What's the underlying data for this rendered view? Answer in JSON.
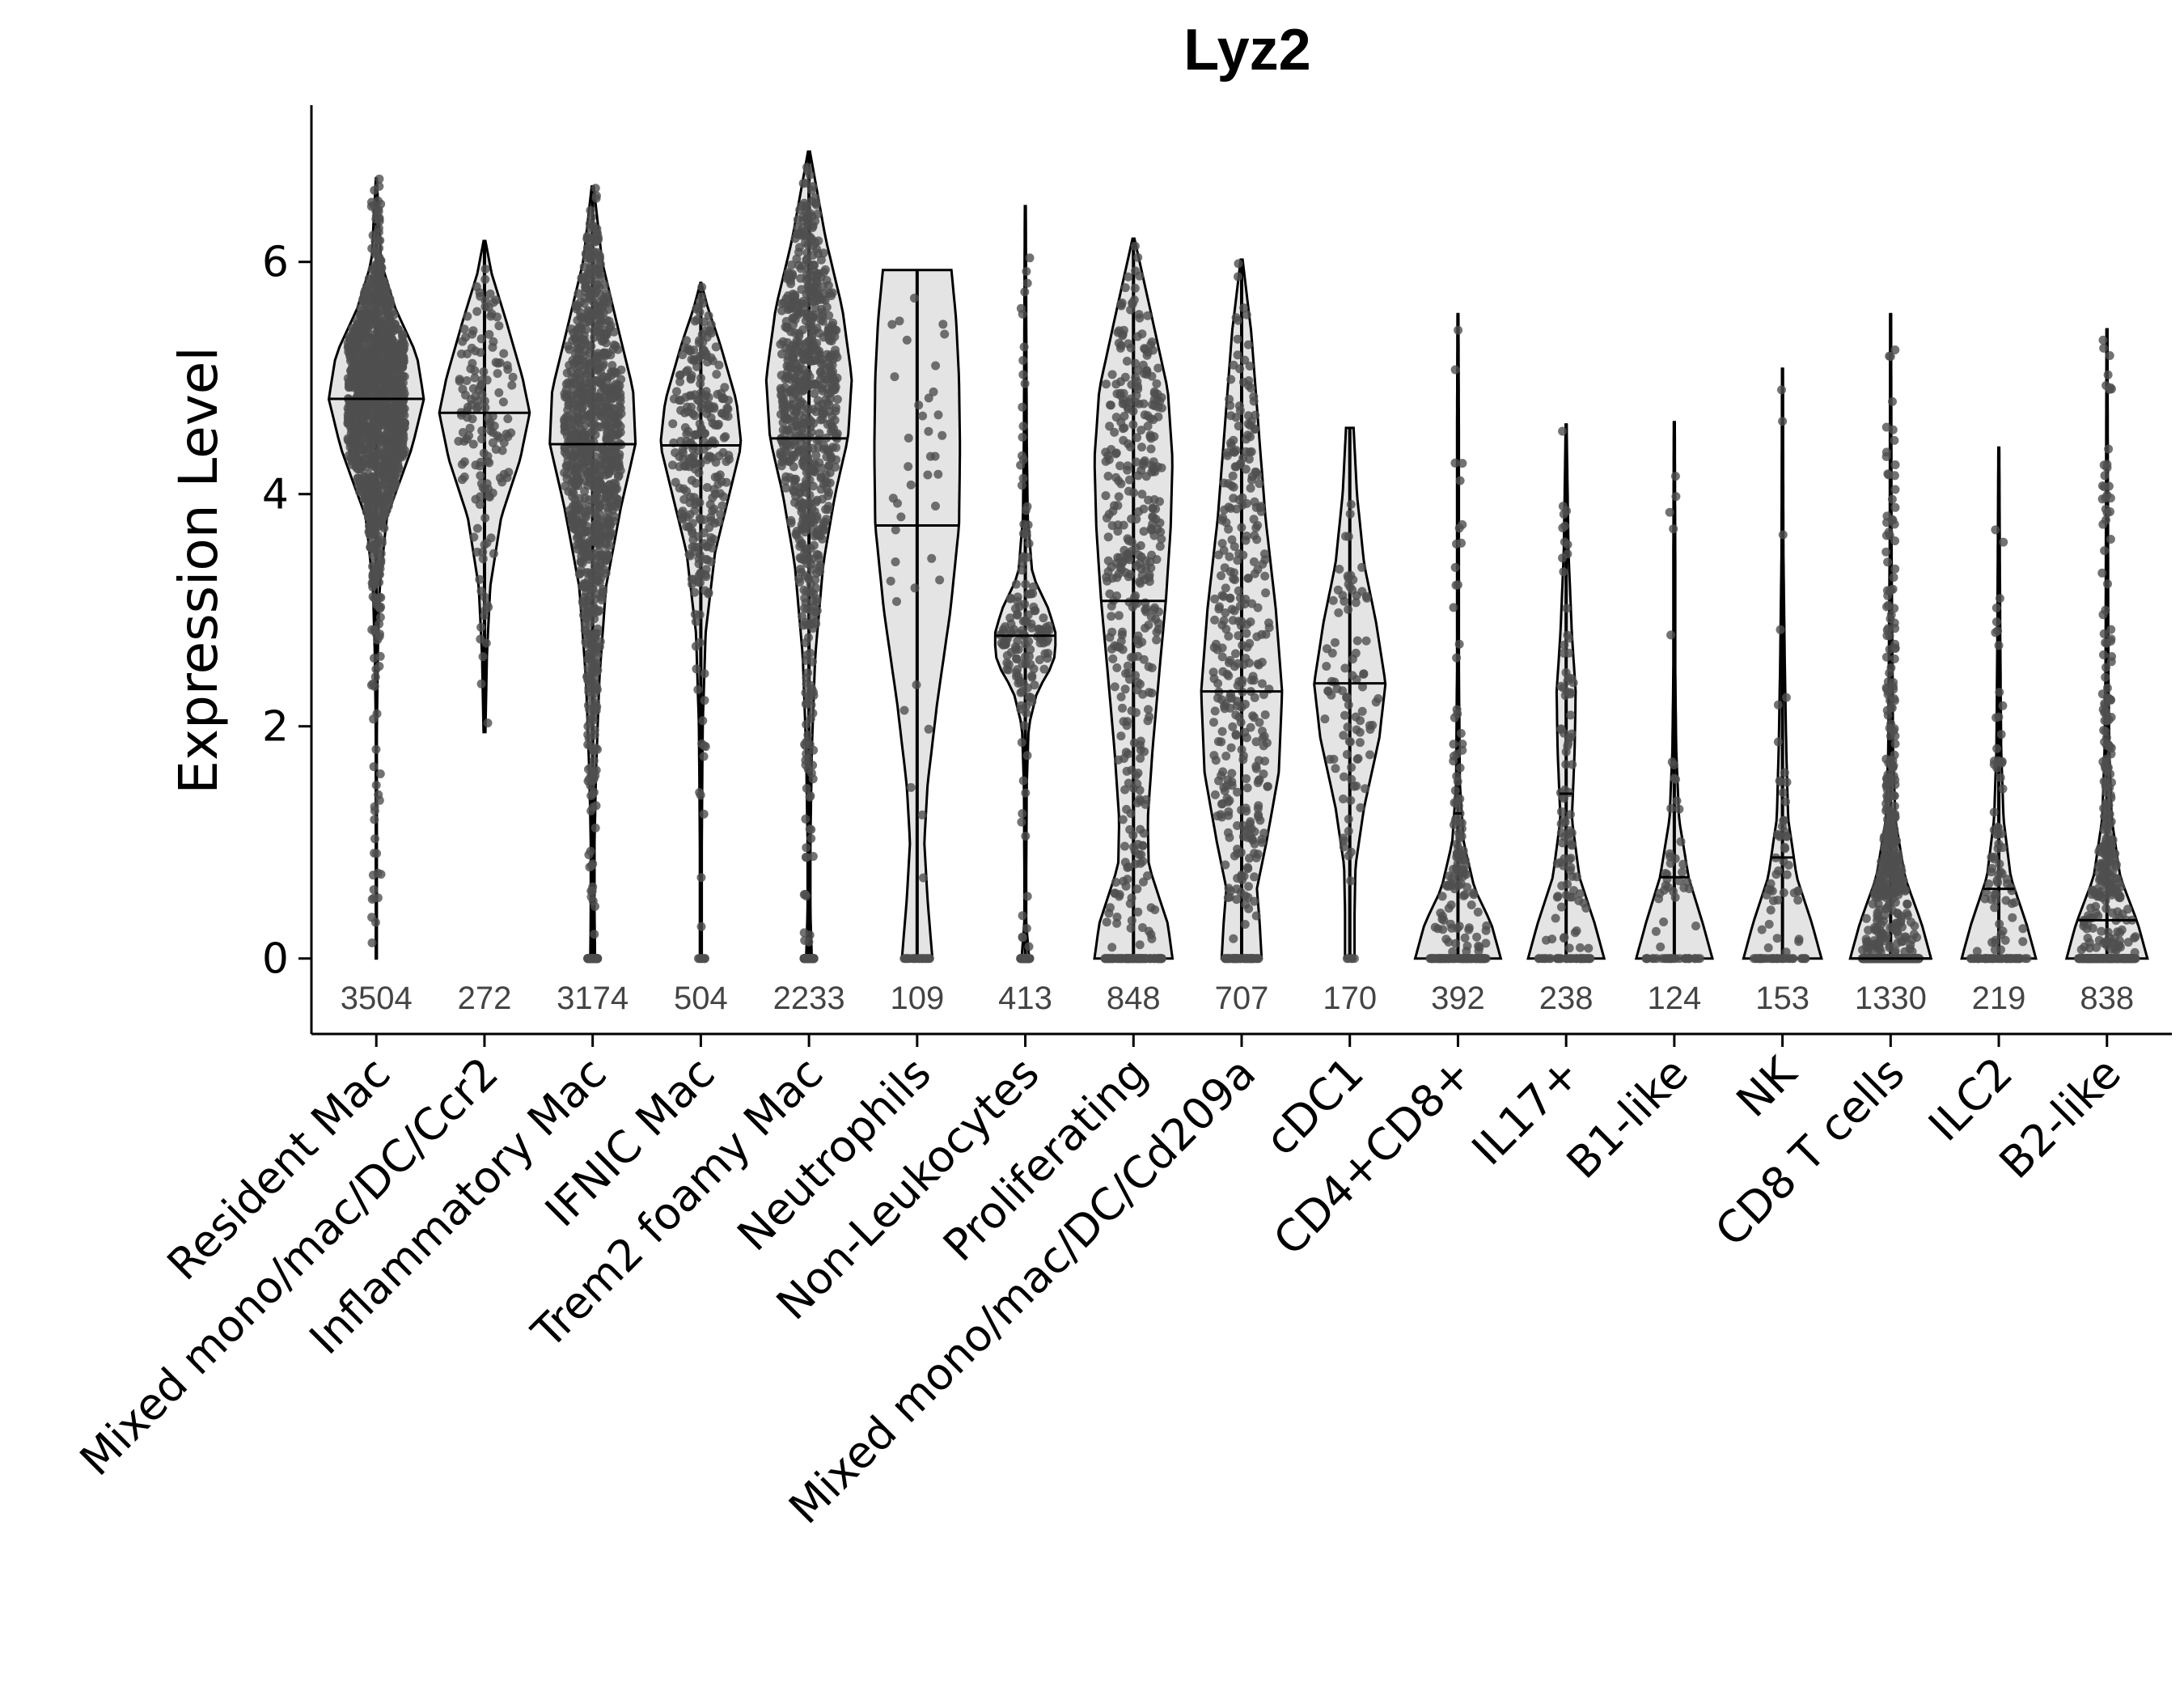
{
  "chart_data": {
    "type": "violin",
    "title": "Lyz2",
    "xlabel": "",
    "ylabel": "Expression Level",
    "ylim": [
      -0.65,
      7.35
    ],
    "yticks": [
      0,
      2,
      4,
      6
    ],
    "grid": false,
    "legend": "none",
    "point_color": "#4f4f4f",
    "violin_fill": "#e4e4e4",
    "categories": [
      {
        "label": "Resident Mac",
        "n": "3504",
        "median": 4.82,
        "max": 6.72,
        "min": 0,
        "zero_frac": 0.0,
        "profile": [
          [
            0,
            0.01
          ],
          [
            1.9,
            0.01
          ],
          [
            2.6,
            0.03
          ],
          [
            3.2,
            0.07
          ],
          [
            3.8,
            0.22
          ],
          [
            4.4,
            0.75
          ],
          [
            4.82,
            1.0
          ],
          [
            5.2,
            0.85
          ],
          [
            5.6,
            0.4
          ],
          [
            6.0,
            0.1
          ],
          [
            6.72,
            0.01
          ]
        ]
      },
      {
        "label": "Mixed mono/mac/DC/Ccr2",
        "n": "272",
        "median": 4.7,
        "max": 6.18,
        "min": 1.95,
        "zero_frac": 0.0,
        "profile": [
          [
            1.95,
            0.02
          ],
          [
            2.6,
            0.05
          ],
          [
            3.2,
            0.12
          ],
          [
            3.8,
            0.35
          ],
          [
            4.3,
            0.75
          ],
          [
            4.7,
            0.95
          ],
          [
            5.0,
            0.8
          ],
          [
            5.5,
            0.45
          ],
          [
            5.9,
            0.15
          ],
          [
            6.18,
            0.02
          ]
        ]
      },
      {
        "label": "Inflammatory Mac",
        "n": "3174",
        "median": 4.43,
        "max": 6.65,
        "min": 0,
        "zero_frac": 0.3,
        "profile": [
          [
            0,
            0.05
          ],
          [
            0.4,
            0.04
          ],
          [
            1.0,
            0.04
          ],
          [
            1.6,
            0.07
          ],
          [
            2.4,
            0.14
          ],
          [
            3.2,
            0.28
          ],
          [
            3.9,
            0.6
          ],
          [
            4.43,
            0.9
          ],
          [
            4.9,
            0.85
          ],
          [
            5.4,
            0.55
          ],
          [
            6.0,
            0.2
          ],
          [
            6.65,
            0.02
          ]
        ]
      },
      {
        "label": "IFNIC Mac",
        "n": "504",
        "median": 4.42,
        "max": 5.82,
        "min": 0,
        "zero_frac": 0.03,
        "profile": [
          [
            0,
            0.02
          ],
          [
            1.0,
            0.02
          ],
          [
            2.0,
            0.04
          ],
          [
            2.8,
            0.1
          ],
          [
            3.5,
            0.3
          ],
          [
            4.0,
            0.6
          ],
          [
            4.42,
            0.85
          ],
          [
            4.8,
            0.75
          ],
          [
            5.3,
            0.4
          ],
          [
            5.6,
            0.15
          ],
          [
            5.82,
            0.01
          ]
        ]
      },
      {
        "label": "Trem2 foamy Mac",
        "n": "2233",
        "median": 4.48,
        "max": 6.95,
        "min": 0,
        "zero_frac": 0.4,
        "profile": [
          [
            0,
            0.06
          ],
          [
            0.4,
            0.03
          ],
          [
            1.0,
            0.03
          ],
          [
            1.8,
            0.06
          ],
          [
            2.6,
            0.13
          ],
          [
            3.4,
            0.3
          ],
          [
            4.0,
            0.55
          ],
          [
            4.48,
            0.82
          ],
          [
            5.0,
            0.9
          ],
          [
            5.6,
            0.7
          ],
          [
            6.2,
            0.35
          ],
          [
            6.95,
            0.02
          ]
        ]
      },
      {
        "label": "Neutrophils",
        "n": "109",
        "median": 3.73,
        "max": 5.93,
        "min": 0,
        "zero_frac": 0.35,
        "profile": [
          [
            0,
            0.32
          ],
          [
            0.5,
            0.22
          ],
          [
            1.0,
            0.15
          ],
          [
            1.5,
            0.22
          ],
          [
            2.2,
            0.42
          ],
          [
            3.0,
            0.7
          ],
          [
            3.73,
            0.88
          ],
          [
            4.4,
            0.9
          ],
          [
            5.0,
            0.88
          ],
          [
            5.5,
            0.82
          ],
          [
            5.93,
            0.72
          ]
        ]
      },
      {
        "label": "Non-Leukocytes",
        "n": "413",
        "median": 2.78,
        "max": 6.48,
        "min": 0,
        "zero_frac": 0.3,
        "profile": [
          [
            0,
            0.08
          ],
          [
            0.3,
            0.02
          ],
          [
            0.8,
            0.02
          ],
          [
            1.5,
            0.03
          ],
          [
            2.0,
            0.07
          ],
          [
            2.3,
            0.25
          ],
          [
            2.55,
            0.6
          ],
          [
            2.78,
            0.65
          ],
          [
            3.0,
            0.5
          ],
          [
            3.3,
            0.15
          ],
          [
            3.8,
            0.05
          ],
          [
            4.5,
            0.03
          ],
          [
            5.5,
            0.02
          ],
          [
            6.48,
            0.01
          ]
        ]
      },
      {
        "label": "Proliferating",
        "n": "848",
        "median": 3.08,
        "max": 6.2,
        "min": 0,
        "zero_frac": 0.2,
        "profile": [
          [
            0,
            0.82
          ],
          [
            0.3,
            0.72
          ],
          [
            0.8,
            0.32
          ],
          [
            1.2,
            0.3
          ],
          [
            1.8,
            0.4
          ],
          [
            2.5,
            0.55
          ],
          [
            3.08,
            0.68
          ],
          [
            3.7,
            0.78
          ],
          [
            4.3,
            0.82
          ],
          [
            4.9,
            0.72
          ],
          [
            5.5,
            0.4
          ],
          [
            6.2,
            0.02
          ]
        ]
      },
      {
        "label": "Mixed mono/mac/DC/Cd209a",
        "n": "707",
        "median": 2.3,
        "max": 6.02,
        "min": 0,
        "zero_frac": 0.15,
        "profile": [
          [
            0,
            0.42
          ],
          [
            0.3,
            0.38
          ],
          [
            0.6,
            0.32
          ],
          [
            1.0,
            0.52
          ],
          [
            1.6,
            0.78
          ],
          [
            2.3,
            0.85
          ],
          [
            3.0,
            0.72
          ],
          [
            3.8,
            0.5
          ],
          [
            4.6,
            0.35
          ],
          [
            5.4,
            0.2
          ],
          [
            6.02,
            0.02
          ]
        ]
      },
      {
        "label": "cDC1",
        "n": "170",
        "median": 2.37,
        "max": 4.57,
        "min": 0,
        "zero_frac": 0.05,
        "profile": [
          [
            0,
            0.1
          ],
          [
            0.4,
            0.1
          ],
          [
            0.8,
            0.12
          ],
          [
            1.3,
            0.3
          ],
          [
            1.9,
            0.62
          ],
          [
            2.37,
            0.75
          ],
          [
            2.9,
            0.55
          ],
          [
            3.4,
            0.3
          ],
          [
            4.0,
            0.15
          ],
          [
            4.57,
            0.08
          ]
        ]
      },
      {
        "label": "CD4+CD8+",
        "n": "392",
        "median": 1.25,
        "max": 5.55,
        "min": 0,
        "zero_frac": 0.45,
        "profile": [
          [
            0,
            0.9
          ],
          [
            0.3,
            0.7
          ],
          [
            0.6,
            0.35
          ],
          [
            1.0,
            0.12
          ],
          [
            1.5,
            0.04
          ],
          [
            2.5,
            0.02
          ],
          [
            3.5,
            0.02
          ],
          [
            4.5,
            0.02
          ],
          [
            5.55,
            0.01
          ]
        ]
      },
      {
        "label": "IL17+",
        "n": "238",
        "median": 1.42,
        "max": 4.6,
        "min": 0,
        "zero_frac": 0.3,
        "profile": [
          [
            0,
            0.8
          ],
          [
            0.3,
            0.6
          ],
          [
            0.7,
            0.28
          ],
          [
            1.2,
            0.12
          ],
          [
            1.8,
            0.18
          ],
          [
            2.3,
            0.2
          ],
          [
            2.8,
            0.12
          ],
          [
            3.5,
            0.05
          ],
          [
            4.6,
            0.01
          ]
        ]
      },
      {
        "label": "B1-like",
        "n": "124",
        "median": 0.7,
        "max": 4.62,
        "min": 0,
        "zero_frac": 0.45,
        "profile": [
          [
            0,
            0.8
          ],
          [
            0.3,
            0.6
          ],
          [
            0.7,
            0.3
          ],
          [
            1.2,
            0.1
          ],
          [
            1.8,
            0.04
          ],
          [
            2.5,
            0.02
          ],
          [
            3.5,
            0.02
          ],
          [
            4.62,
            0.01
          ]
        ]
      },
      {
        "label": "NK",
        "n": "153",
        "median": 0.87,
        "max": 5.08,
        "min": 0,
        "zero_frac": 0.4,
        "profile": [
          [
            0,
            0.82
          ],
          [
            0.3,
            0.62
          ],
          [
            0.7,
            0.3
          ],
          [
            1.2,
            0.12
          ],
          [
            1.8,
            0.08
          ],
          [
            2.5,
            0.05
          ],
          [
            3.5,
            0.02
          ],
          [
            5.08,
            0.01
          ]
        ]
      },
      {
        "label": "CD8 T cells",
        "n": "1330",
        "median": 0.0,
        "max": 5.55,
        "min": 0,
        "zero_frac": 0.5,
        "profile": [
          [
            0,
            0.85
          ],
          [
            0.3,
            0.65
          ],
          [
            0.7,
            0.3
          ],
          [
            1.2,
            0.1
          ],
          [
            1.8,
            0.05
          ],
          [
            2.5,
            0.04
          ],
          [
            3.5,
            0.02
          ],
          [
            5.55,
            0.01
          ]
        ]
      },
      {
        "label": "ILC2",
        "n": "219",
        "median": 0.6,
        "max": 4.4,
        "min": 0,
        "zero_frac": 0.4,
        "profile": [
          [
            0,
            0.78
          ],
          [
            0.3,
            0.58
          ],
          [
            0.7,
            0.25
          ],
          [
            1.2,
            0.1
          ],
          [
            1.8,
            0.05
          ],
          [
            2.8,
            0.03
          ],
          [
            4.4,
            0.01
          ]
        ]
      },
      {
        "label": "B2-like",
        "n": "838",
        "median": 0.33,
        "max": 5.42,
        "min": 0,
        "zero_frac": 0.45,
        "profile": [
          [
            0,
            0.85
          ],
          [
            0.3,
            0.65
          ],
          [
            0.7,
            0.28
          ],
          [
            1.2,
            0.1
          ],
          [
            1.8,
            0.05
          ],
          [
            2.5,
            0.03
          ],
          [
            4.0,
            0.02
          ],
          [
            5.42,
            0.01
          ]
        ]
      }
    ]
  }
}
